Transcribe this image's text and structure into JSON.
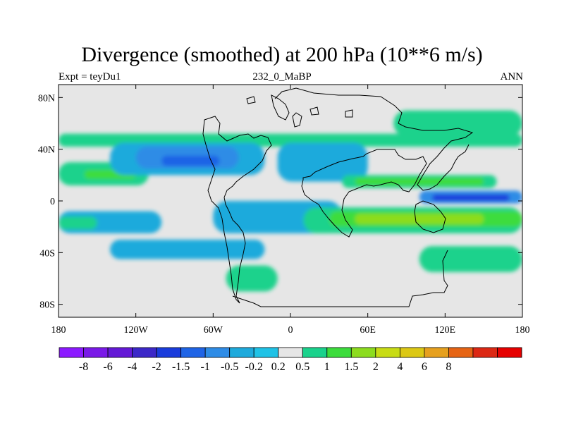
{
  "title": "Divergence (smoothed) at 200 hPa (10**6 m/s)",
  "subtitle_left": "Expt = teyDu1",
  "subtitle_center": "232_0_MaBP",
  "subtitle_right": "ANN",
  "chart_data": {
    "type": "heatmap",
    "title": "Divergence (smoothed) at 200 hPa (10**6 m/s)",
    "xlim": [
      -180,
      180
    ],
    "ylim": [
      -90,
      90
    ],
    "x_ticks": [
      {
        "value": -180,
        "label": "180"
      },
      {
        "value": -120,
        "label": "120W"
      },
      {
        "value": -60,
        "label": "60W"
      },
      {
        "value": 0,
        "label": "0"
      },
      {
        "value": 60,
        "label": "60E"
      },
      {
        "value": 120,
        "label": "120E"
      },
      {
        "value": 180,
        "label": "180"
      }
    ],
    "y_ticks": [
      {
        "value": 80,
        "label": "80N"
      },
      {
        "value": 40,
        "label": "40N"
      },
      {
        "value": 0,
        "label": "0"
      },
      {
        "value": -40,
        "label": "40S"
      },
      {
        "value": -80,
        "label": "80S"
      }
    ],
    "colorbar": {
      "colors": [
        "#8c1aff",
        "#7a19e8",
        "#6419d6",
        "#3c28c8",
        "#1a3cdc",
        "#1f64e6",
        "#2e8ce6",
        "#1eaadc",
        "#1fc2e6",
        "#e6e6e6",
        "#1ad28c",
        "#3cdc3c",
        "#8cdc1e",
        "#c8dc14",
        "#dcc814",
        "#e6a01e",
        "#e66414",
        "#dc2814",
        "#e60000"
      ],
      "labels": [
        "-8",
        "-6",
        "-4",
        "-2",
        "-1.5",
        "-1",
        "-0.5",
        "-0.2",
        "0.2",
        "0.5",
        "1",
        "1.5",
        "2",
        "4",
        "6",
        "8"
      ]
    },
    "regions": [
      {
        "lon0": -180,
        "lon1": 180,
        "lat0": 42,
        "lat1": 52,
        "value": 0.5
      },
      {
        "lon0": -180,
        "lon1": -110,
        "lat0": 12,
        "lat1": 30,
        "value": 0.5
      },
      {
        "lon0": -160,
        "lon1": -120,
        "lat0": 17,
        "lat1": 24,
        "value": 1
      },
      {
        "lon0": -140,
        "lon1": -20,
        "lat0": 20,
        "lat1": 45,
        "value": -0.5
      },
      {
        "lon0": -120,
        "lon1": -40,
        "lat0": 25,
        "lat1": 42,
        "value": -1
      },
      {
        "lon0": -100,
        "lon1": -55,
        "lat0": 27,
        "lat1": 35,
        "value": -1.5
      },
      {
        "lon0": -60,
        "lon1": 40,
        "lat0": -25,
        "lat1": 0,
        "value": -0.5
      },
      {
        "lon0": -180,
        "lon1": -100,
        "lat0": -25,
        "lat1": -8,
        "value": -0.5
      },
      {
        "lon0": -180,
        "lon1": -150,
        "lat0": -22,
        "lat1": -12,
        "value": 0.5
      },
      {
        "lon0": -10,
        "lon1": 60,
        "lat0": 15,
        "lat1": 45,
        "value": -0.5
      },
      {
        "lon0": 10,
        "lon1": 180,
        "lat0": -25,
        "lat1": -5,
        "value": 0.5
      },
      {
        "lon0": 30,
        "lon1": 180,
        "lat0": -20,
        "lat1": -8,
        "value": 1
      },
      {
        "lon0": 50,
        "lon1": 150,
        "lat0": -18,
        "lat1": -10,
        "value": 1.5
      },
      {
        "lon0": 40,
        "lon1": 160,
        "lat0": 10,
        "lat1": 20,
        "value": 0.5
      },
      {
        "lon0": 50,
        "lon1": 150,
        "lat0": 12,
        "lat1": 18,
        "value": 1
      },
      {
        "lon0": 100,
        "lon1": 180,
        "lat0": -2,
        "lat1": 8,
        "value": -1
      },
      {
        "lon0": 110,
        "lon1": 170,
        "lat0": 0,
        "lat1": 5,
        "value": -2
      },
      {
        "lon0": -140,
        "lon1": -20,
        "lat0": -45,
        "lat1": -30,
        "value": -0.5
      },
      {
        "lon0": 100,
        "lon1": 180,
        "lat0": -55,
        "lat1": -35,
        "value": 0.5
      },
      {
        "lon0": -50,
        "lon1": -10,
        "lat0": -70,
        "lat1": -50,
        "value": 0.5
      },
      {
        "lon0": 80,
        "lon1": 180,
        "lat0": 50,
        "lat1": 70,
        "value": 0.5
      }
    ]
  }
}
